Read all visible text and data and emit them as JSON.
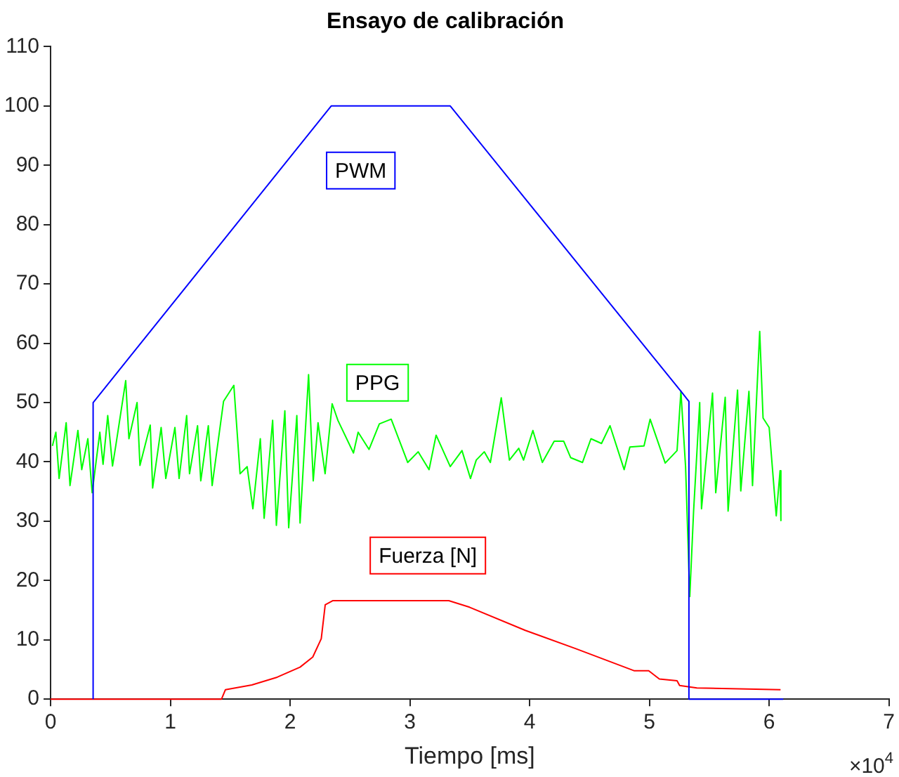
{
  "chart_data": {
    "type": "line",
    "title": "Ensayo de calibración",
    "xlabel": "Tiempo [ms]",
    "annotations": [
      "×10$^{4}$"
    ],
    "xlim": [
      0,
      7
    ],
    "xticks": [
      0,
      1,
      2,
      3,
      4,
      5,
      6,
      7
    ],
    "ylim": [
      0,
      110
    ],
    "yticks": [
      0,
      10,
      20,
      30,
      40,
      50,
      60,
      70,
      80,
      90,
      100,
      110
    ],
    "grid": false,
    "legend": false,
    "marker": "none",
    "line_style": "solid",
    "series": [
      {
        "name": "PWM",
        "color": "#0000ff",
        "x": [
          0.355,
          0.355,
          2.343,
          3.337,
          5.263,
          5.33,
          5.33,
          6.118
        ],
        "values": [
          0,
          50,
          100,
          100,
          51.9,
          50.2,
          0,
          0
        ]
      },
      {
        "name": "PPG",
        "color": "#00ff00",
        "x": [
          0.015,
          0.044,
          0.071,
          0.13,
          0.162,
          0.228,
          0.26,
          0.311,
          0.347,
          0.411,
          0.438,
          0.477,
          0.517,
          0.544,
          0.627,
          0.654,
          0.722,
          0.746,
          0.832,
          0.852,
          0.923,
          0.962,
          1.038,
          1.073,
          1.136,
          1.16,
          1.227,
          1.254,
          1.317,
          1.349,
          1.444,
          1.53,
          1.582,
          1.641,
          1.689,
          1.751,
          1.783,
          1.854,
          1.885,
          1.956,
          1.988,
          2.056,
          2.083,
          2.154,
          2.193,
          2.233,
          2.292,
          2.351,
          2.399,
          2.529,
          2.568,
          2.659,
          2.745,
          2.844,
          2.982,
          3.069,
          3.16,
          3.219,
          3.337,
          3.435,
          3.506,
          3.554,
          3.621,
          3.672,
          3.763,
          3.831,
          3.909,
          3.949,
          4.027,
          4.106,
          4.205,
          4.284,
          4.343,
          4.441,
          4.512,
          4.6,
          4.671,
          4.789,
          4.837,
          4.955,
          5.006,
          5.132,
          5.231,
          5.263,
          5.302,
          5.337,
          5.369,
          5.42,
          5.435,
          5.527,
          5.554,
          5.633,
          5.657,
          5.736,
          5.763,
          5.831,
          5.861,
          5.921,
          5.949,
          6,
          6.059,
          6.091,
          6.098
        ],
        "values": [
          42.7,
          45,
          37.2,
          46.6,
          36,
          45.3,
          38.7,
          43.9,
          34.8,
          45,
          39.6,
          47.8,
          39.3,
          42.7,
          53.7,
          43.9,
          50,
          39.4,
          46.2,
          35.6,
          45.8,
          37.2,
          45.8,
          37.2,
          47.8,
          38,
          46.1,
          36.8,
          46.1,
          36,
          50.2,
          52.9,
          38,
          39.2,
          32.1,
          43.9,
          30.5,
          47,
          29.3,
          48.6,
          28.9,
          47.8,
          29.7,
          54.7,
          36.8,
          46.6,
          38,
          49.8,
          47,
          41.5,
          45,
          42.1,
          46.4,
          47.2,
          39.9,
          41.7,
          38.7,
          44.5,
          39.2,
          41.9,
          37.2,
          40.3,
          41.7,
          39.9,
          50.8,
          40.3,
          42.3,
          40.3,
          45.3,
          39.9,
          43.5,
          43.5,
          40.7,
          39.9,
          43.9,
          43.1,
          46.1,
          38.7,
          42.5,
          42.7,
          47.2,
          39.8,
          41.9,
          51.9,
          39.2,
          17.3,
          31.7,
          50,
          32.1,
          51.6,
          34.8,
          50.9,
          31.7,
          52.1,
          35.1,
          51.9,
          36,
          62,
          47.4,
          45.8,
          30.9,
          38.5,
          30.1
        ]
      },
      {
        "name": "Fuerza [N]",
        "color": "#ff0000",
        "x": [
          0,
          1.427,
          1.46,
          1.68,
          1.892,
          2.083,
          2.189,
          2.26,
          2.293,
          2.355,
          3.325,
          3.498,
          3.963,
          4.386,
          4.871,
          4.994,
          5.083,
          5.231,
          5.252,
          5.396,
          6.095
        ],
        "values": [
          0,
          0,
          1.6,
          2.4,
          3.7,
          5.4,
          7.1,
          10.2,
          15.9,
          16.6,
          16.6,
          15.5,
          11.6,
          8.5,
          4.8,
          4.8,
          3.4,
          3.1,
          2.3,
          1.9,
          1.6
        ]
      }
    ]
  }
}
